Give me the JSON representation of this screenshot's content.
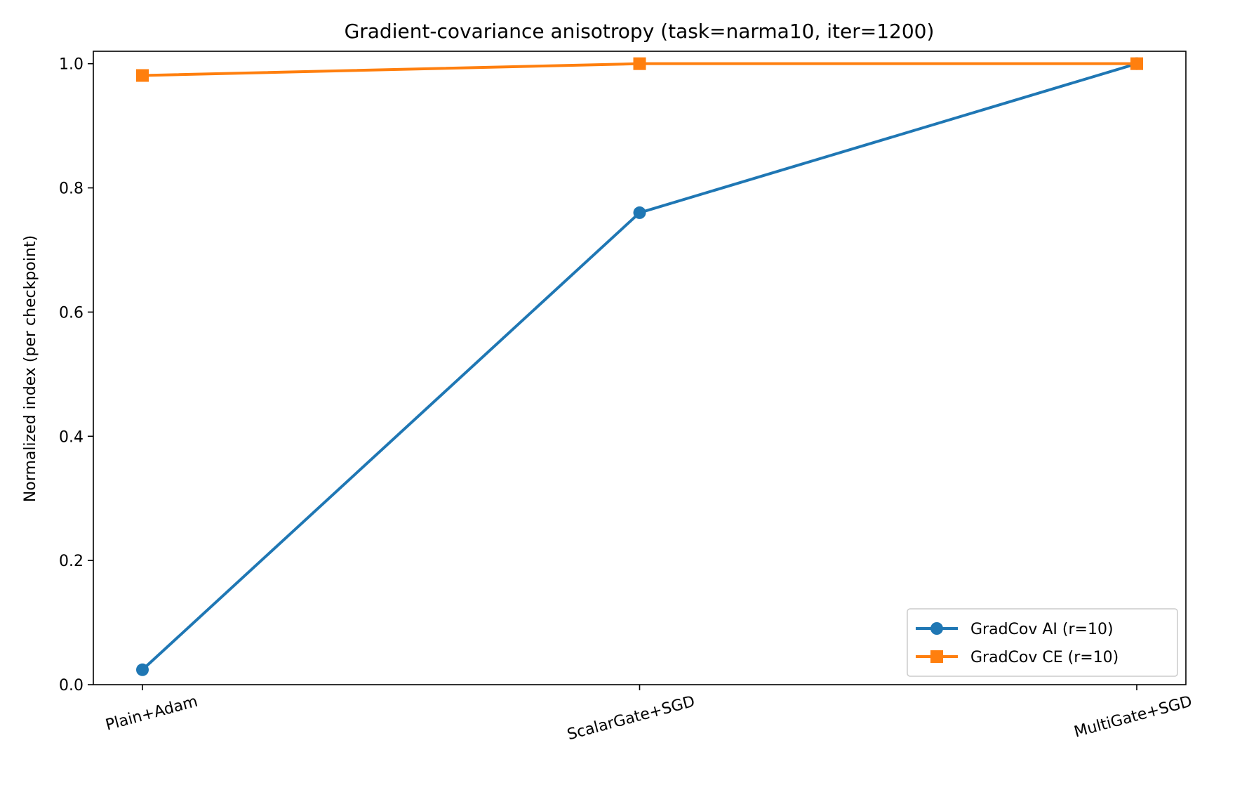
{
  "chart_data": {
    "type": "line",
    "title": "Gradient-covariance anisotropy (task=narma10, iter=1200)",
    "xlabel": "",
    "ylabel": "Normalized index (per checkpoint)",
    "categories": [
      "Plain+Adam",
      "ScalarGate+SGD",
      "MultiGate+SGD"
    ],
    "ylim": [
      0,
      1.02
    ],
    "yticks": [
      0.0,
      0.2,
      0.4,
      0.6,
      0.8,
      1.0
    ],
    "ytick_labels": [
      "0.0",
      "0.2",
      "0.4",
      "0.6",
      "0.8",
      "1.0"
    ],
    "grid": false,
    "legend_position": "lower-right",
    "series": [
      {
        "name": "GradCov AI (r=10)",
        "values": [
          0.024,
          0.76,
          1.0
        ],
        "color": "#1f77b4",
        "marker": "circle"
      },
      {
        "name": "GradCov CE (r=10)",
        "values": [
          0.981,
          1.0,
          1.0
        ],
        "color": "#ff7f0e",
        "marker": "square"
      }
    ]
  }
}
